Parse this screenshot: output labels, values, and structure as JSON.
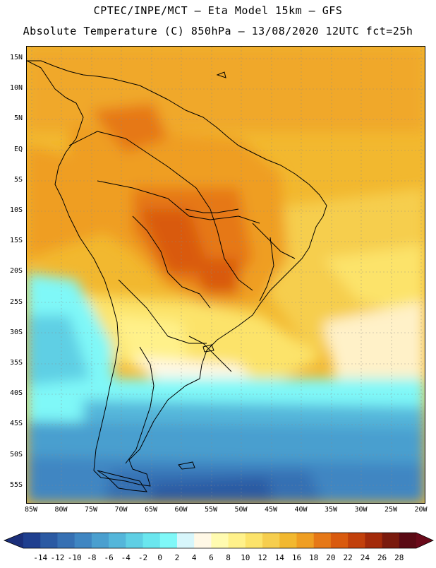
{
  "title_line1": "CPTEC/INPE/MCT –  Eta Model 15km – GFS",
  "title_line2": "Absolute Temperature (C) 850hPa – 13/08/2020 12UTC fct=25h",
  "lat_labels": [
    "15N",
    "10N",
    "5N",
    "EQ",
    "5S",
    "10S",
    "15S",
    "20S",
    "25S",
    "30S",
    "35S",
    "40S",
    "45S",
    "50S",
    "55S"
  ],
  "lon_labels": [
    "85W",
    "80W",
    "75W",
    "70W",
    "65W",
    "60W",
    "55W",
    "50W",
    "45W",
    "40W",
    "35W",
    "30W",
    "25W",
    "20W"
  ],
  "colorbar": {
    "labels": [
      "-14",
      "-12",
      "-10",
      "-8",
      "-6",
      "-4",
      "-2",
      "0",
      "2",
      "4",
      "6",
      "8",
      "10",
      "12",
      "14",
      "16",
      "18",
      "20",
      "22",
      "24",
      "26",
      "28"
    ],
    "colors": [
      "#1f3f8f",
      "#2b5aa3",
      "#3670b3",
      "#3f86c2",
      "#4a9fcf",
      "#54b6da",
      "#5fcfe4",
      "#6ae6ee",
      "#7ff8f8",
      "#d7f6fb",
      "#fff8e6",
      "#fffbb0",
      "#fff18a",
      "#fce36a",
      "#f6ce4e",
      "#f2b82f",
      "#ef9e22",
      "#e67817",
      "#d95a0e",
      "#c2400b",
      "#a32a0a",
      "#7a1a0d",
      "#5a0a14"
    ],
    "left_arrow_color": "#1b2f7a",
    "right_arrow_color": "#6a0a1a"
  }
}
